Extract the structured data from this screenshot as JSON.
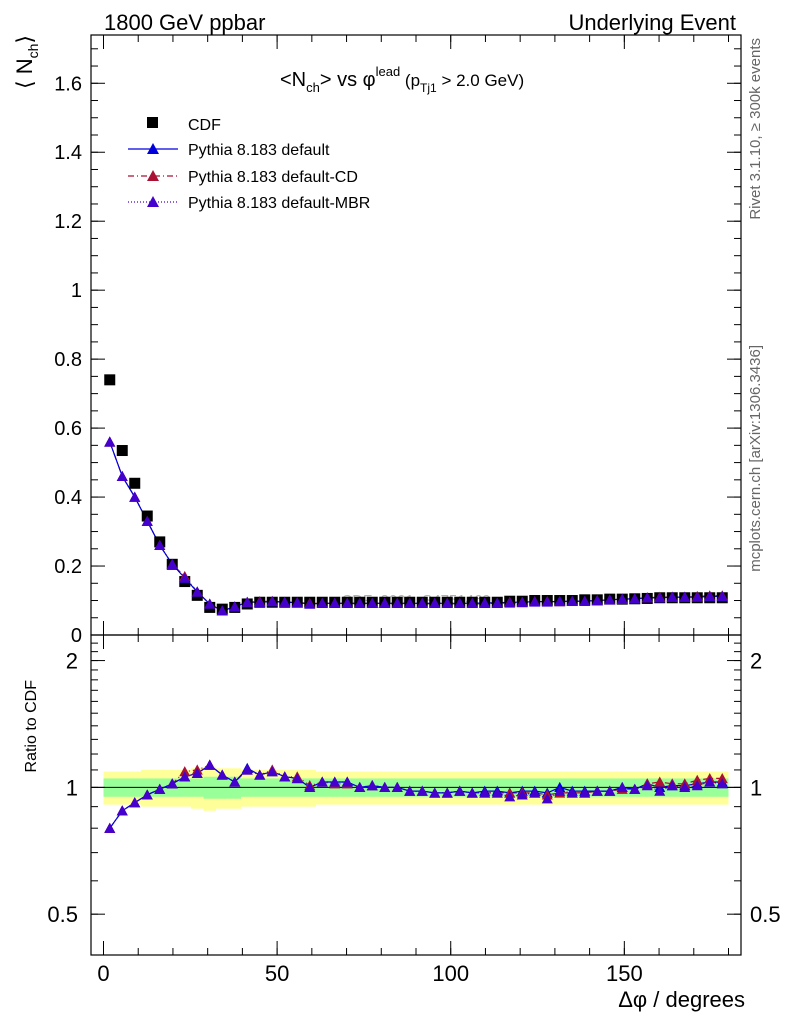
{
  "header": {
    "left_label": "1800 GeV ppbar",
    "right_label": "Underlying Event"
  },
  "side_labels": {
    "rivet": "Rivet 3.1.10, ≥ 300k events",
    "mcplots": "mcplots.cern.ch [arXiv:1306.3436]"
  },
  "plot_title": {
    "main": "<N",
    "main_sub": "ch",
    "main_mid": "> vs φ",
    "main_sup": "lead",
    "paren_open": " (p",
    "paren_sub": "Tj1",
    "paren_rest": " > 2.0 GeV)"
  },
  "watermark": "CDF_2001_S4751469",
  "colors": {
    "cdf": "#000000",
    "default": "#0000dd",
    "default_cd": "#aa1133",
    "default_mbr": "#4400cc",
    "band_inner": "#99ff99",
    "band_outer": "#ffff99"
  },
  "chart_data": [
    {
      "type": "scatter",
      "panel": "main",
      "ylabel": "⟨ N",
      "ylabel_sub": "ch",
      "ylabel_close": "⟩",
      "xlim": [
        -3.6,
        183.6
      ],
      "ylim": [
        0,
        1.74
      ],
      "y_ticks": [
        {
          "value": 0,
          "label": "0"
        },
        {
          "value": 0.2,
          "label": "0.2"
        },
        {
          "value": 0.4,
          "label": "0.4"
        },
        {
          "value": 0.6,
          "label": "0.6"
        },
        {
          "value": 0.8,
          "label": "0.8"
        },
        {
          "value": 1.0,
          "label": "1"
        },
        {
          "value": 1.2,
          "label": "1.2"
        },
        {
          "value": 1.4,
          "label": "1.4"
        },
        {
          "value": 1.6,
          "label": "1.6"
        }
      ],
      "x": [
        1.8,
        5.4,
        9.0,
        12.6,
        16.2,
        19.8,
        23.4,
        27.0,
        30.6,
        34.2,
        37.8,
        41.4,
        45.0,
        48.6,
        52.2,
        55.8,
        59.4,
        63.0,
        66.6,
        70.2,
        73.8,
        77.4,
        81.0,
        84.6,
        88.2,
        91.8,
        95.4,
        99.0,
        102.6,
        106.2,
        109.8,
        113.4,
        117.0,
        120.6,
        124.2,
        127.8,
        131.4,
        135.0,
        138.6,
        142.2,
        145.8,
        149.4,
        153.0,
        156.6,
        160.2,
        163.8,
        167.4,
        171.0,
        174.6,
        178.2
      ],
      "series": [
        {
          "name": "CDF",
          "marker": "square",
          "values": [
            0.74,
            0.535,
            0.44,
            0.345,
            0.27,
            0.205,
            0.155,
            0.115,
            0.08,
            0.075,
            0.08,
            0.09,
            0.095,
            0.095,
            0.095,
            0.095,
            0.095,
            0.095,
            0.095,
            0.095,
            0.095,
            0.095,
            0.095,
            0.095,
            0.095,
            0.095,
            0.095,
            0.095,
            0.095,
            0.095,
            0.095,
            0.095,
            0.098,
            0.098,
            0.1,
            0.1,
            0.1,
            0.1,
            0.102,
            0.102,
            0.104,
            0.104,
            0.105,
            0.106,
            0.108,
            0.108,
            0.108,
            0.108,
            0.108,
            0.108
          ]
        },
        {
          "name": "Pythia 8.183 default",
          "marker": "triangle",
          "line": "solid",
          "values": [
            0.56,
            0.46,
            0.4,
            0.33,
            0.26,
            0.205,
            0.165,
            0.125,
            0.09,
            0.07,
            0.082,
            0.095,
            0.095,
            0.097,
            0.095,
            0.094,
            0.09,
            0.092,
            0.092,
            0.092,
            0.092,
            0.092,
            0.092,
            0.092,
            0.092,
            0.092,
            0.092,
            0.092,
            0.092,
            0.092,
            0.093,
            0.093,
            0.095,
            0.095,
            0.097,
            0.097,
            0.097,
            0.098,
            0.098,
            0.1,
            0.102,
            0.104,
            0.105,
            0.108,
            0.108,
            0.11,
            0.11,
            0.11,
            0.112,
            0.112
          ]
        },
        {
          "name": "Pythia 8.183 default-CD",
          "marker": "triangle",
          "line": "dashdot",
          "values": [
            0.56,
            0.46,
            0.4,
            0.33,
            0.26,
            0.205,
            0.17,
            0.125,
            0.09,
            0.07,
            0.082,
            0.095,
            0.097,
            0.098,
            0.095,
            0.094,
            0.092,
            0.092,
            0.092,
            0.092,
            0.092,
            0.092,
            0.092,
            0.092,
            0.092,
            0.092,
            0.092,
            0.092,
            0.092,
            0.092,
            0.092,
            0.092,
            0.095,
            0.095,
            0.097,
            0.097,
            0.097,
            0.098,
            0.098,
            0.1,
            0.102,
            0.104,
            0.105,
            0.108,
            0.11,
            0.11,
            0.11,
            0.112,
            0.114,
            0.114
          ]
        },
        {
          "name": "Pythia 8.183 default-MBR",
          "marker": "triangle",
          "line": "dotted",
          "values": [
            0.56,
            0.46,
            0.4,
            0.33,
            0.26,
            0.205,
            0.165,
            0.125,
            0.09,
            0.07,
            0.082,
            0.095,
            0.095,
            0.097,
            0.095,
            0.094,
            0.09,
            0.092,
            0.092,
            0.092,
            0.092,
            0.092,
            0.092,
            0.092,
            0.092,
            0.092,
            0.092,
            0.092,
            0.092,
            0.092,
            0.092,
            0.092,
            0.093,
            0.094,
            0.096,
            0.096,
            0.098,
            0.098,
            0.098,
            0.1,
            0.102,
            0.104,
            0.105,
            0.108,
            0.108,
            0.11,
            0.11,
            0.11,
            0.112,
            0.112
          ]
        }
      ],
      "legend": {
        "placement": "top-left"
      }
    },
    {
      "type": "line",
      "panel": "ratio",
      "ylabel": "Ratio to CDF",
      "xlabel": "Δφ / degrees",
      "xlim": [
        -3.6,
        183.6
      ],
      "ylim": [
        0.4,
        2.3
      ],
      "y_scale": "log",
      "y_ticks": [
        {
          "value": 0.5,
          "label": "0.5"
        },
        {
          "value": 1,
          "label": "1"
        },
        {
          "value": 2,
          "label": "2"
        }
      ],
      "x_ticks": [
        {
          "value": 0,
          "label": "0"
        },
        {
          "value": 50,
          "label": "50"
        },
        {
          "value": 100,
          "label": "100"
        },
        {
          "value": 150,
          "label": "150"
        }
      ],
      "band_inner": [
        0.05,
        0.05,
        0.05,
        0.05,
        0.05,
        0.05,
        0.05,
        0.05,
        0.06,
        0.06,
        0.06,
        0.05,
        0.05,
        0.05,
        0.05,
        0.05,
        0.05,
        0.05,
        0.05,
        0.05,
        0.05,
        0.05,
        0.05,
        0.05,
        0.05,
        0.05,
        0.05,
        0.05,
        0.05,
        0.05,
        0.05,
        0.05,
        0.05,
        0.05,
        0.05,
        0.05,
        0.05,
        0.05,
        0.05,
        0.05,
        0.05,
        0.05,
        0.05,
        0.05,
        0.05,
        0.05,
        0.05,
        0.05,
        0.05,
        0.05
      ],
      "band_outer": [
        0.09,
        0.09,
        0.09,
        0.1,
        0.1,
        0.1,
        0.1,
        0.11,
        0.12,
        0.11,
        0.11,
        0.1,
        0.1,
        0.1,
        0.1,
        0.1,
        0.1,
        0.09,
        0.09,
        0.09,
        0.09,
        0.09,
        0.09,
        0.09,
        0.09,
        0.09,
        0.09,
        0.09,
        0.09,
        0.09,
        0.09,
        0.09,
        0.09,
        0.09,
        0.09,
        0.09,
        0.09,
        0.09,
        0.09,
        0.09,
        0.09,
        0.09,
        0.09,
        0.09,
        0.09,
        0.09,
        0.09,
        0.09,
        0.09,
        0.09
      ],
      "series": [
        {
          "name": "Pythia 8.183 default",
          "values": [
            0.8,
            0.88,
            0.92,
            0.96,
            0.99,
            1.02,
            1.06,
            1.08,
            1.13,
            1.07,
            1.03,
            1.11,
            1.07,
            1.09,
            1.06,
            1.05,
            1.0,
            1.03,
            1.03,
            1.03,
            1.0,
            1.01,
            1.0,
            1.0,
            0.98,
            0.98,
            0.97,
            0.97,
            0.98,
            0.97,
            0.98,
            0.98,
            0.97,
            0.98,
            0.98,
            0.97,
            1.0,
            0.98,
            0.98,
            0.98,
            0.98,
            1.0,
            0.99,
            1.02,
            1.0,
            1.01,
            1.01,
            1.02,
            1.03,
            1.03
          ]
        },
        {
          "name": "Pythia 8.183 default-CD",
          "values": [
            0.8,
            0.88,
            0.92,
            0.96,
            0.99,
            1.02,
            1.09,
            1.1,
            1.13,
            1.07,
            1.03,
            1.1,
            1.07,
            1.1,
            1.06,
            1.06,
            1.01,
            1.03,
            1.02,
            1.02,
            1.0,
            1.01,
            1.0,
            1.0,
            0.98,
            0.98,
            0.97,
            0.97,
            0.98,
            0.97,
            0.97,
            0.97,
            0.97,
            0.97,
            0.97,
            0.96,
            0.97,
            0.97,
            0.97,
            0.98,
            0.98,
            0.99,
            0.99,
            1.02,
            1.03,
            1.02,
            1.02,
            1.04,
            1.05,
            1.05
          ]
        },
        {
          "name": "Pythia 8.183 default-MBR",
          "values": [
            0.8,
            0.88,
            0.92,
            0.96,
            0.99,
            1.02,
            1.06,
            1.08,
            1.13,
            1.07,
            1.03,
            1.1,
            1.07,
            1.09,
            1.06,
            1.05,
            1.0,
            1.03,
            1.03,
            1.03,
            1.0,
            1.01,
            1.0,
            1.0,
            0.98,
            0.98,
            0.97,
            0.97,
            0.98,
            0.97,
            0.97,
            0.97,
            0.95,
            0.96,
            0.97,
            0.94,
            0.98,
            0.97,
            0.97,
            0.98,
            0.98,
            1.0,
            0.99,
            1.01,
            0.98,
            1.01,
            1.0,
            1.01,
            1.03,
            1.02
          ]
        }
      ]
    }
  ]
}
